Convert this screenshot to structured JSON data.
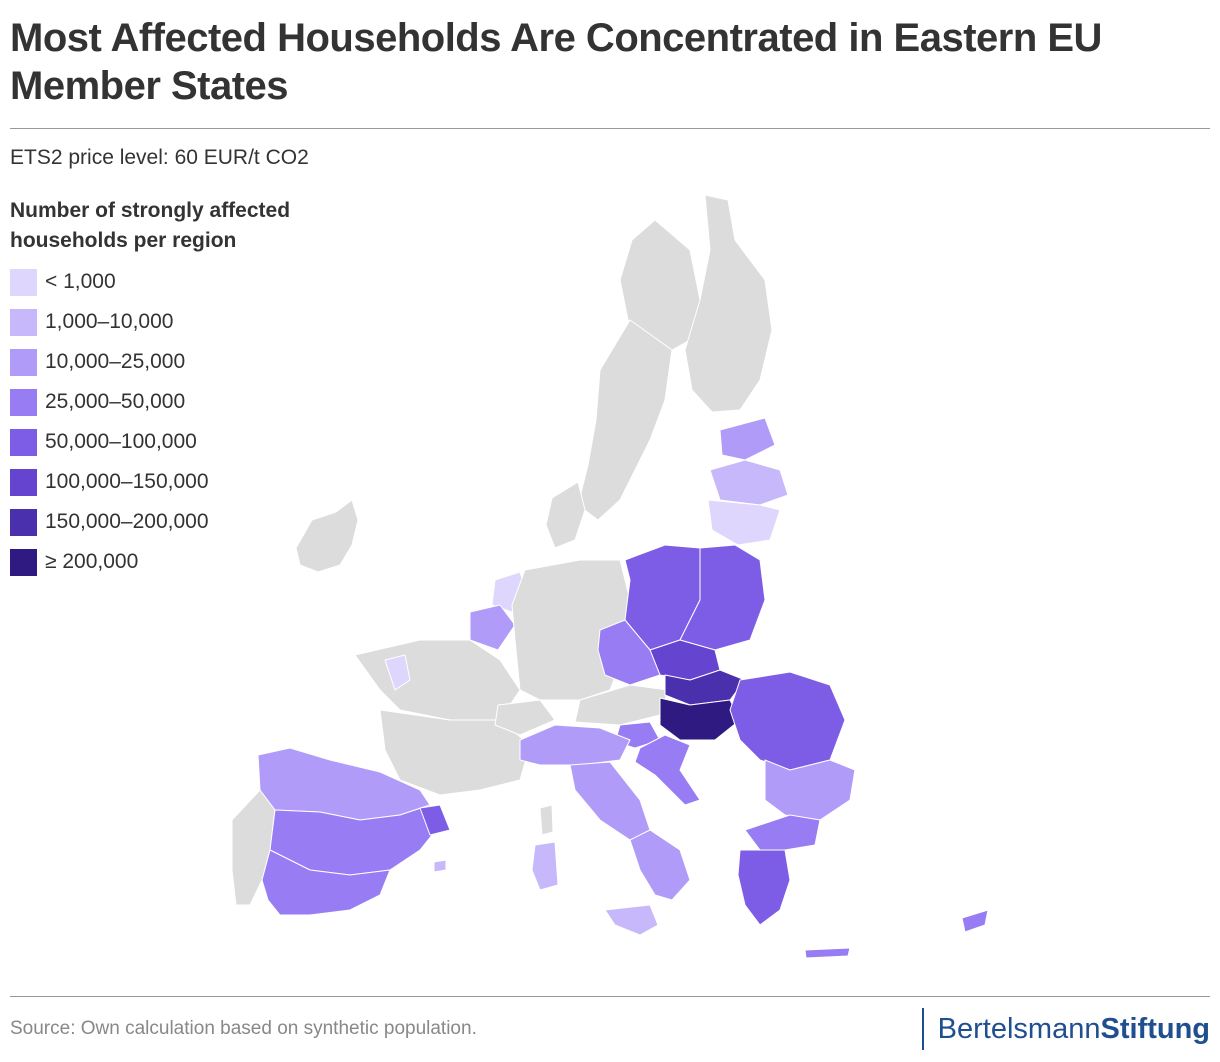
{
  "header": {
    "title": "Most Affected Households Are Concentrated in Eastern EU Member States",
    "subtitle": "ETS2 price level: 60 EUR/t CO2"
  },
  "legend": {
    "title": "Number of strongly affected households per region",
    "items": [
      {
        "label": "< 1,000",
        "color": "#ded6fc"
      },
      {
        "label": "1,000–10,000",
        "color": "#c7b8fb"
      },
      {
        "label": "10,000–25,000",
        "color": "#b09bf8"
      },
      {
        "label": "25,000–50,000",
        "color": "#987cf3"
      },
      {
        "label": "50,000–100,000",
        "color": "#7d5de6"
      },
      {
        "label": "100,000–150,000",
        "color": "#6545cf"
      },
      {
        "label": "150,000–200,000",
        "color": "#4b30ad"
      },
      {
        "label": "≥ 200,000",
        "color": "#2e1a80"
      }
    ]
  },
  "map": {
    "no_data_color": "#dcdcdc",
    "border_color": "#ffffff"
  },
  "footer": {
    "source": "Source: Own calculation based on synthetic population.",
    "brand_regular": "Bertelsmann",
    "brand_bold": "Stiftung",
    "brand_color": "#1f4f8f"
  }
}
